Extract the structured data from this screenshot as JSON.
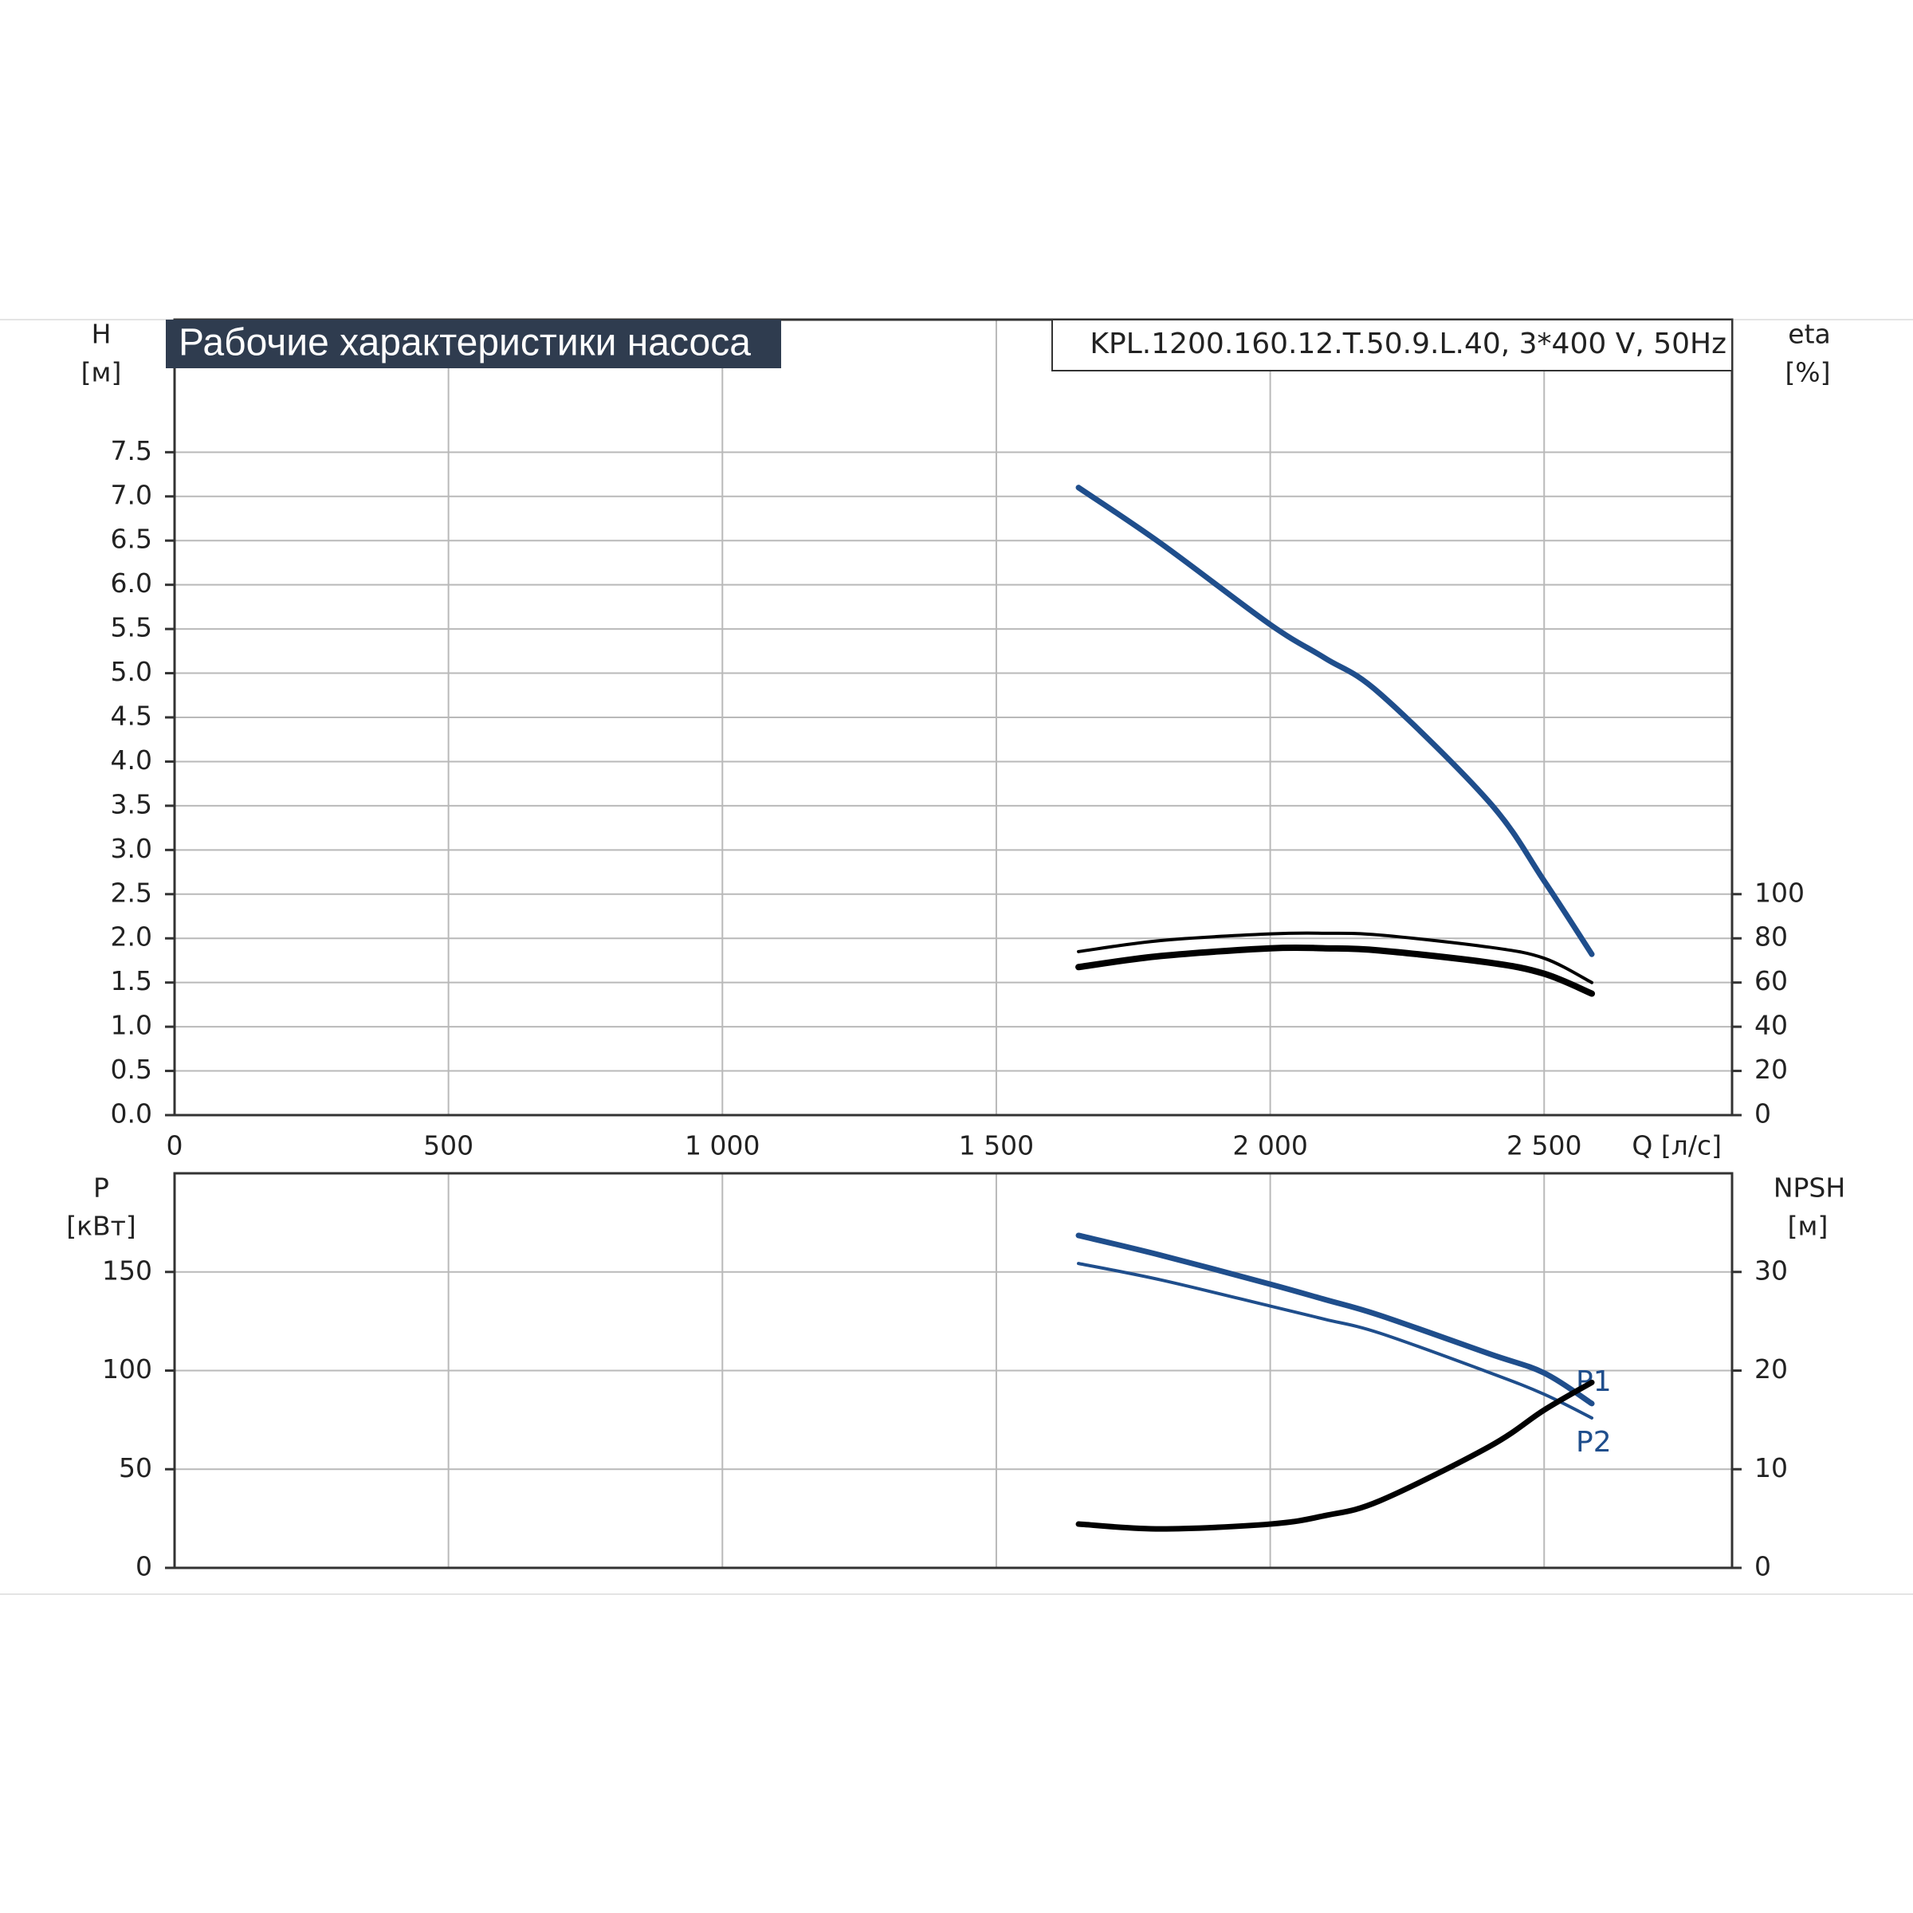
{
  "chart_data": [
    {
      "type": "line",
      "title": "Рабочие характеристики насоса",
      "subtitle": "KPL.1200.160.12.T.50.9.L.40, 3*400 V, 50Hz",
      "xlabel": "Q [л/с]",
      "ylabel": "H",
      "ylabel_unit": "[м]",
      "y2label": "eta",
      "y2label_unit": "[%]",
      "xlim": [
        0,
        2843
      ],
      "xticks": [
        0,
        500,
        {
          "value": 1000,
          "label": "1 000"
        },
        {
          "value": 1500,
          "label": "1 500"
        },
        {
          "value": 2000,
          "label": "2 000"
        },
        {
          "value": 2500,
          "label": "2 500"
        }
      ],
      "ylim": [
        0,
        9
      ],
      "yticks": [
        {
          "value": 0,
          "label": "0.0"
        },
        0.5,
        {
          "value": 1,
          "label": "1.0"
        },
        1.5,
        {
          "value": 2,
          "label": "2.0"
        },
        2.5,
        {
          "value": 3,
          "label": "3.0"
        },
        3.5,
        {
          "value": 4,
          "label": "4.0"
        },
        4.5,
        {
          "value": 5,
          "label": "5.0"
        },
        5.5,
        {
          "value": 6,
          "label": "6.0"
        },
        6.5,
        {
          "value": 7,
          "label": "7.0"
        },
        7.5
      ],
      "y2lim": [
        0,
        360
      ],
      "y2ticks": [
        0,
        20,
        40,
        60,
        80,
        100
      ],
      "grid": true,
      "x": [
        1650,
        1800,
        2000,
        2100,
        2200,
        2400,
        2500,
        2587
      ],
      "series": [
        {
          "color": "#1f4e8c",
          "values": [
            7.1,
            6.47,
            5.55,
            5.17,
            4.77,
            3.54,
            2.65,
            1.82
          ]
        },
        {
          "color": "#000000",
          "axis": "y2",
          "values": [
            74,
            79,
            82,
            82.3,
            81.5,
            76,
            71,
            60
          ]
        },
        {
          "color": "#000000",
          "axis": "y2",
          "values": [
            67,
            72,
            75.5,
            75.5,
            74.5,
            69,
            64,
            55
          ]
        }
      ]
    },
    {
      "type": "line",
      "ylabel": "P",
      "ylabel_unit": "[кВт]",
      "y2label": "NPSH",
      "y2label_unit": "[м]",
      "xlim": [
        0,
        2843
      ],
      "xticks": [
        0,
        500,
        1000,
        1500,
        2000,
        2500
      ],
      "xtick_labels": false,
      "ylim": [
        0,
        200
      ],
      "yticks": [
        0,
        50,
        100,
        150
      ],
      "y2lim": [
        0,
        40
      ],
      "y2ticks": [
        0,
        10,
        20,
        30
      ],
      "grid": true,
      "x": [
        1650,
        1800,
        2000,
        2100,
        2200,
        2400,
        2500,
        2587
      ],
      "series": [
        {
          "name": "P1",
          "color": "#1f4e8c",
          "values": [
            168.5,
            158.5,
            143.8,
            136,
            128,
            108.5,
            98.8,
            83.3
          ]
        },
        {
          "name": "P2",
          "color": "#1f4e8c",
          "values": [
            154.3,
            146,
            132.7,
            126,
            119,
            99,
            88,
            76
          ]
        },
        {
          "color": "#000000",
          "axis": "y2",
          "values": [
            4.44,
            3.95,
            4.44,
            5.3,
            6.8,
            12.3,
            16,
            18.8
          ]
        }
      ]
    }
  ]
}
